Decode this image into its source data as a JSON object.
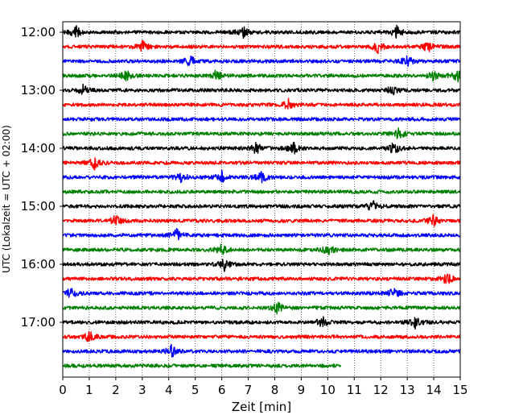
{
  "chart_data": {
    "type": "line",
    "title": "",
    "xlabel": "Zeit  [min]",
    "ylabel": "UTC (Lokalzeit = UTC + 02:00)",
    "xlim": [
      0,
      15
    ],
    "xticks": [
      0,
      1,
      2,
      3,
      4,
      5,
      6,
      7,
      8,
      9,
      10,
      11,
      12,
      13,
      14,
      15
    ],
    "xtick_labels": [
      "0",
      "1",
      "2",
      "3",
      "4",
      "5",
      "6",
      "7",
      "8",
      "9",
      "10",
      "11",
      "12",
      "13",
      "14",
      "15"
    ],
    "grid": "vertical dotted lines at each minute",
    "ytick_labels": [
      "12:00",
      "13:00",
      "14:00",
      "15:00",
      "16:00",
      "17:00"
    ],
    "ytick_trace_index": [
      0,
      4,
      8,
      12,
      16,
      20
    ],
    "trace_interval_minutes": 15,
    "last_trace_end_minutes": 10.5,
    "color_cycle": [
      "#000000",
      "#ff0000",
      "#0000ff",
      "#008000"
    ],
    "traces": [
      {
        "start": "12:00",
        "color": "#000000",
        "events_min": [
          0.5,
          6.8,
          12.6
        ]
      },
      {
        "start": "12:15",
        "color": "#ff0000",
        "events_min": [
          3.0,
          11.9,
          13.8
        ]
      },
      {
        "start": "12:30",
        "color": "#0000ff",
        "events_min": [
          4.8,
          13.0
        ]
      },
      {
        "start": "12:45",
        "color": "#008000",
        "events_min": [
          2.4,
          5.8,
          14.0,
          14.9
        ]
      },
      {
        "start": "13:00",
        "color": "#000000",
        "events_min": [
          0.8,
          12.4
        ]
      },
      {
        "start": "13:15",
        "color": "#ff0000",
        "events_min": [
          8.5
        ]
      },
      {
        "start": "13:30",
        "color": "#0000ff",
        "events_min": []
      },
      {
        "start": "13:45",
        "color": "#008000",
        "events_min": [
          12.7
        ]
      },
      {
        "start": "14:00",
        "color": "#000000",
        "events_min": [
          7.3,
          8.7,
          12.5
        ]
      },
      {
        "start": "14:15",
        "color": "#ff0000",
        "events_min": [
          1.2
        ]
      },
      {
        "start": "14:30",
        "color": "#0000ff",
        "events_min": [
          4.5,
          6.0,
          7.5
        ]
      },
      {
        "start": "14:45",
        "color": "#008000",
        "events_min": []
      },
      {
        "start": "15:00",
        "color": "#000000",
        "events_min": [
          11.7
        ]
      },
      {
        "start": "15:15",
        "color": "#ff0000",
        "events_min": [
          2.0,
          14.0
        ]
      },
      {
        "start": "15:30",
        "color": "#0000ff",
        "events_min": [
          4.3
        ]
      },
      {
        "start": "15:45",
        "color": "#008000",
        "events_min": [
          6.0,
          10.0
        ]
      },
      {
        "start": "16:00",
        "color": "#000000",
        "events_min": [
          6.1
        ]
      },
      {
        "start": "16:15",
        "color": "#ff0000",
        "events_min": [
          14.5
        ]
      },
      {
        "start": "16:30",
        "color": "#0000ff",
        "events_min": [
          0.3,
          12.5
        ]
      },
      {
        "start": "16:45",
        "color": "#008000",
        "events_min": [
          8.1
        ]
      },
      {
        "start": "17:00",
        "color": "#000000",
        "events_min": [
          9.8,
          13.3
        ]
      },
      {
        "start": "17:15",
        "color": "#ff0000",
        "events_min": [
          1.0
        ]
      },
      {
        "start": "17:30",
        "color": "#0000ff",
        "events_min": [
          4.1
        ]
      },
      {
        "start": "17:45",
        "color": "#008000",
        "events_min": []
      }
    ]
  }
}
